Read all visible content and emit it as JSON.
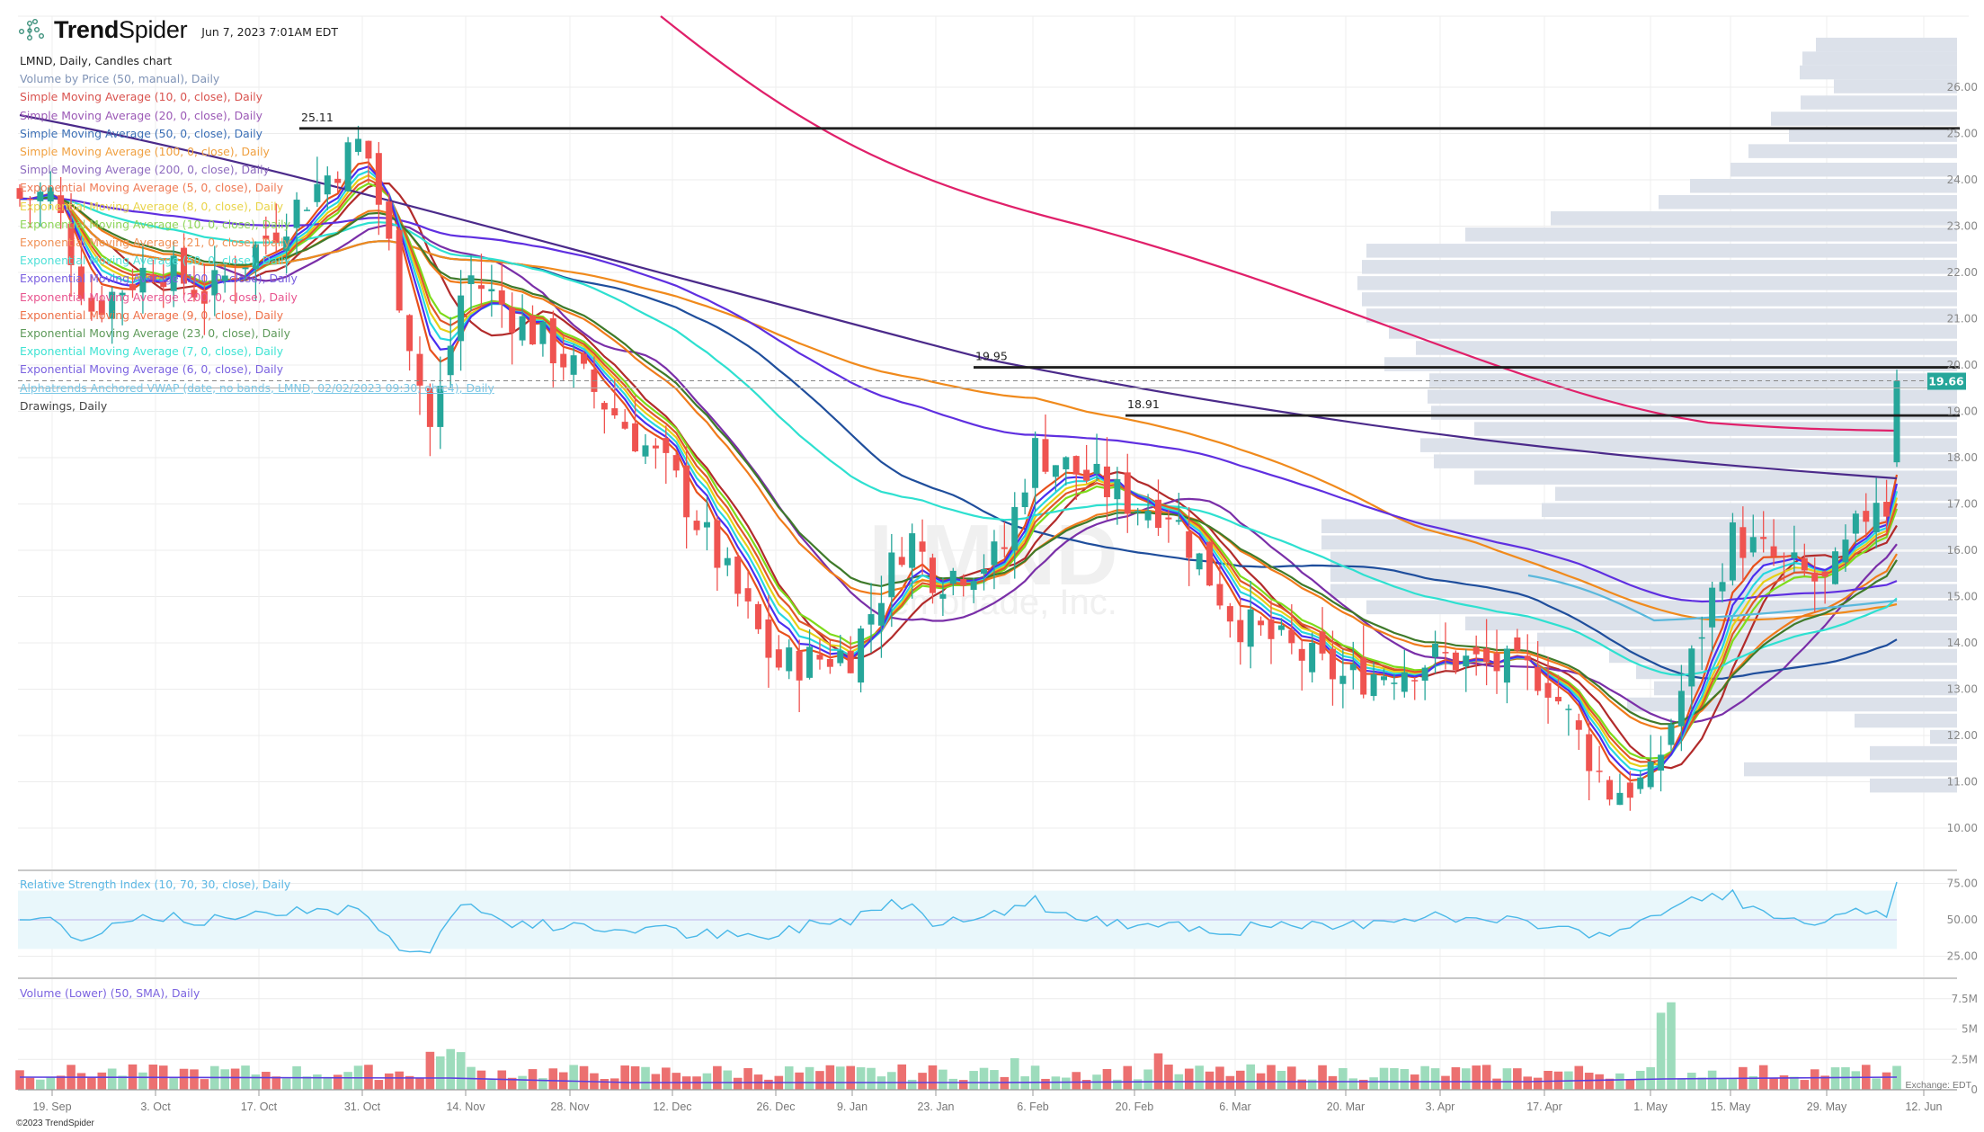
{
  "header": {
    "brand_bold": "Trend",
    "brand_light": "Spider",
    "timestamp": "Jun 7, 2023 7:01AM EDT"
  },
  "legend": {
    "title": "LMND, Daily, Candles chart",
    "items": [
      {
        "label": "Volume by Price (50, manual), Daily",
        "color": "#7f93b6"
      },
      {
        "label": "Simple Moving Average (10, 0, close), Daily",
        "color": "#d9534f"
      },
      {
        "label": "Simple Moving Average (20, 0, close), Daily",
        "color": "#9b59b6"
      },
      {
        "label": "Simple Moving Average (50, 0, close), Daily",
        "color": "#3b6fb6"
      },
      {
        "label": "Simple Moving Average (100, 0, close), Daily",
        "color": "#f0a040"
      },
      {
        "label": "Simple Moving Average (200, 0, close), Daily",
        "color": "#8e6bbf"
      },
      {
        "label": "Exponential Moving Average (5, 0, close), Daily",
        "color": "#ef7a55"
      },
      {
        "label": "Exponential Moving Average (8, 0, close), Daily",
        "color": "#e9d44a"
      },
      {
        "label": "Exponential Moving Average (10, 0, close), Daily",
        "color": "#8fd65a"
      },
      {
        "label": "Exponential Moving Average (21, 0, close), Daily",
        "color": "#f09055"
      },
      {
        "label": "Exponential Moving Average (50, 0, close), Daily",
        "color": "#4fe0d8"
      },
      {
        "label": "Exponential Moving Average (100, 0, close), Daily",
        "color": "#7a5fe0"
      },
      {
        "label": "Exponential Moving Average (200, 0, close), Daily",
        "color": "#e8558f"
      },
      {
        "label": "Exponential Moving Average (9, 0, close), Daily",
        "color": "#ee7048"
      },
      {
        "label": "Exponential Moving Average (23, 0, close), Daily",
        "color": "#5e9a5a"
      },
      {
        "label": "Exponential Moving Average (7, 0, close), Daily",
        "color": "#3fe3d3"
      },
      {
        "label": "Exponential Moving Average (6, 0, close), Daily",
        "color": "#7b63e0"
      },
      {
        "label": "Alphatrends Anchored VWAP (date, no bands, LMND, 02/02/2023 09:30, ohlc4), Daily",
        "color": "#7cc8e6"
      },
      {
        "label": "Drawings, Daily",
        "color": "#444444"
      }
    ]
  },
  "rsi_legend": "Relative Strength Index (10, 70, 30, close), Daily",
  "volume_legend": "Volume (Lower) (50, SMA), Daily",
  "exchange_label": "Exchange: EDT",
  "copyright": "©2023 TrendSpider",
  "watermark": {
    "symbol": "LMND",
    "company": "Lemonade, Inc."
  },
  "last_price": {
    "value": "19.66",
    "color": "#26a69a"
  },
  "colors": {
    "up": "#26a69a",
    "down": "#ef5350",
    "vol_up": "#9ddcbc",
    "vol_down": "#ec7070",
    "vbp": "#dce1ea",
    "drawing": "#1f1f1f"
  },
  "chart_data": {
    "type": "candlestick",
    "title": "LMND, Daily, Candles chart",
    "xlabel": "",
    "ylabel": "Price",
    "ylim": [
      9.6,
      27.0
    ],
    "price_ticks": [
      "26.00",
      "25.00",
      "24.00",
      "23.00",
      "22.00",
      "21.00",
      "20.00",
      "19.00",
      "18.00",
      "17.00",
      "16.00",
      "15.00",
      "14.00",
      "13.00",
      "12.00",
      "11.00",
      "10.00"
    ],
    "date_ticks": [
      "19. Sep",
      "3. Oct",
      "17. Oct",
      "31. Oct",
      "14. Nov",
      "28. Nov",
      "12. Dec",
      "26. Dec",
      "9. Jan",
      "23. Jan",
      "6. Feb",
      "20. Feb",
      "6. Mar",
      "20. Mar",
      "3. Apr",
      "17. Apr",
      "1. May",
      "15. May",
      "29. May",
      "12. Jun"
    ],
    "horizontal_lines": [
      {
        "label": "25.11",
        "price": 25.11
      },
      {
        "label": "19.95",
        "price": 19.95
      },
      {
        "label": "18.91",
        "price": 18.91
      }
    ],
    "key_closes": [
      {
        "x": "mid Sep",
        "price": 23.7
      },
      {
        "x": "late Sep",
        "price": 21.2
      },
      {
        "x": "3. Oct",
        "price": 22.2
      },
      {
        "x": "17. Oct",
        "price": 22.6
      },
      {
        "x": "1. Nov",
        "price": 24.9
      },
      {
        "x": "10. Nov",
        "price": 18.5
      },
      {
        "x": "14. Nov",
        "price": 22.0
      },
      {
        "x": "28. Nov",
        "price": 20.0
      },
      {
        "x": "12. Dec",
        "price": 17.6
      },
      {
        "x": "28. Dec",
        "price": 13.5
      },
      {
        "x": "9. Jan",
        "price": 13.8
      },
      {
        "x": "17. Jan",
        "price": 16.4
      },
      {
        "x": "26. Jan",
        "price": 15.4
      },
      {
        "x": "3. Feb",
        "price": 18.2
      },
      {
        "x": "15. Feb",
        "price": 17.0
      },
      {
        "x": "20. Feb",
        "price": 16.9
      },
      {
        "x": "6. Mar",
        "price": 14.5
      },
      {
        "x": "20. Mar",
        "price": 13.2
      },
      {
        "x": "3. Apr",
        "price": 13.7
      },
      {
        "x": "17. Apr",
        "price": 13.3
      },
      {
        "x": "27. Apr",
        "price": 10.8
      },
      {
        "x": "2. May",
        "price": 11.0
      },
      {
        "x": "4. May",
        "price": 13.5
      },
      {
        "x": "10. May",
        "price": 16.3
      },
      {
        "x": "18. May",
        "price": 15.2
      },
      {
        "x": "25. May",
        "price": 17.4
      },
      {
        "x": "30. May",
        "price": 16.2
      },
      {
        "x": "5. Jun",
        "price": 18.0
      },
      {
        "x": "6. Jun",
        "price": 19.66
      }
    ],
    "rsi": {
      "ylim": [
        10,
        90
      ],
      "ticks": [
        "75.00",
        "50.00",
        "25.00"
      ],
      "overbought": 70,
      "oversold": 30
    },
    "volume": {
      "ticks": [
        "7.5M",
        "5M",
        "2.5M",
        "0"
      ],
      "max_bar_M": 8.2,
      "spike_date": "5. May"
    }
  }
}
